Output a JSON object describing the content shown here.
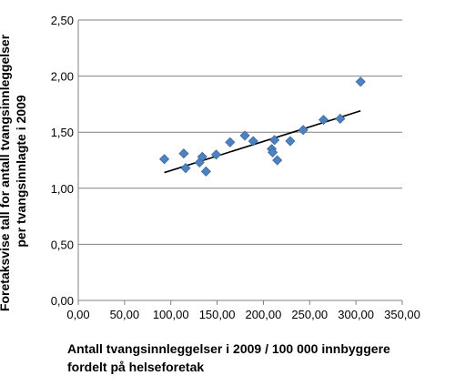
{
  "chart_data": {
    "type": "scatter",
    "title": "",
    "xlabel": "Antall tvangsinnleggelser i 2009 / 100 000 innbyggere fordelt på helseforetak",
    "xlabel_lines": [
      "Antall tvangsinnleggelser i 2009 / 100 000 innbyggere",
      "fordelt på helseforetak"
    ],
    "ylabel": "Foretaksvise tall for antall tvangsinnleggelser per tvangsinnlagte i 2009",
    "ylabel_lines": [
      "Foretaksvise tall for antall tvangsinnleggelser",
      "per tvangsinnlagte i 2009"
    ],
    "xlim": [
      0,
      350
    ],
    "ylim": [
      0,
      2.5
    ],
    "x_ticks": [
      "0,00",
      "50,00",
      "100,00",
      "150,00",
      "200,00",
      "250,00",
      "300,00",
      "350,00"
    ],
    "y_ticks": [
      "0,00",
      "0,50",
      "1,00",
      "1,50",
      "2,00",
      "2,50"
    ],
    "grid": "horizontal",
    "marker": "diamond",
    "colors": {
      "point": "#4F81BD",
      "point_edge": "#3A6AA8",
      "trend": "#000000",
      "grid": "#808080"
    },
    "points": [
      {
        "x": 93,
        "y": 1.26
      },
      {
        "x": 114,
        "y": 1.31
      },
      {
        "x": 116,
        "y": 1.18
      },
      {
        "x": 131,
        "y": 1.23
      },
      {
        "x": 134,
        "y": 1.28
      },
      {
        "x": 138,
        "y": 1.15
      },
      {
        "x": 149,
        "y": 1.3
      },
      {
        "x": 164,
        "y": 1.41
      },
      {
        "x": 180,
        "y": 1.47
      },
      {
        "x": 189,
        "y": 1.42
      },
      {
        "x": 209,
        "y": 1.35
      },
      {
        "x": 210,
        "y": 1.32
      },
      {
        "x": 212,
        "y": 1.43
      },
      {
        "x": 215,
        "y": 1.25
      },
      {
        "x": 229,
        "y": 1.42
      },
      {
        "x": 243,
        "y": 1.52
      },
      {
        "x": 265,
        "y": 1.61
      },
      {
        "x": 283,
        "y": 1.62
      },
      {
        "x": 305,
        "y": 1.95
      }
    ],
    "trendline": {
      "x": [
        93,
        305
      ],
      "y": [
        1.14,
        1.69
      ]
    }
  }
}
